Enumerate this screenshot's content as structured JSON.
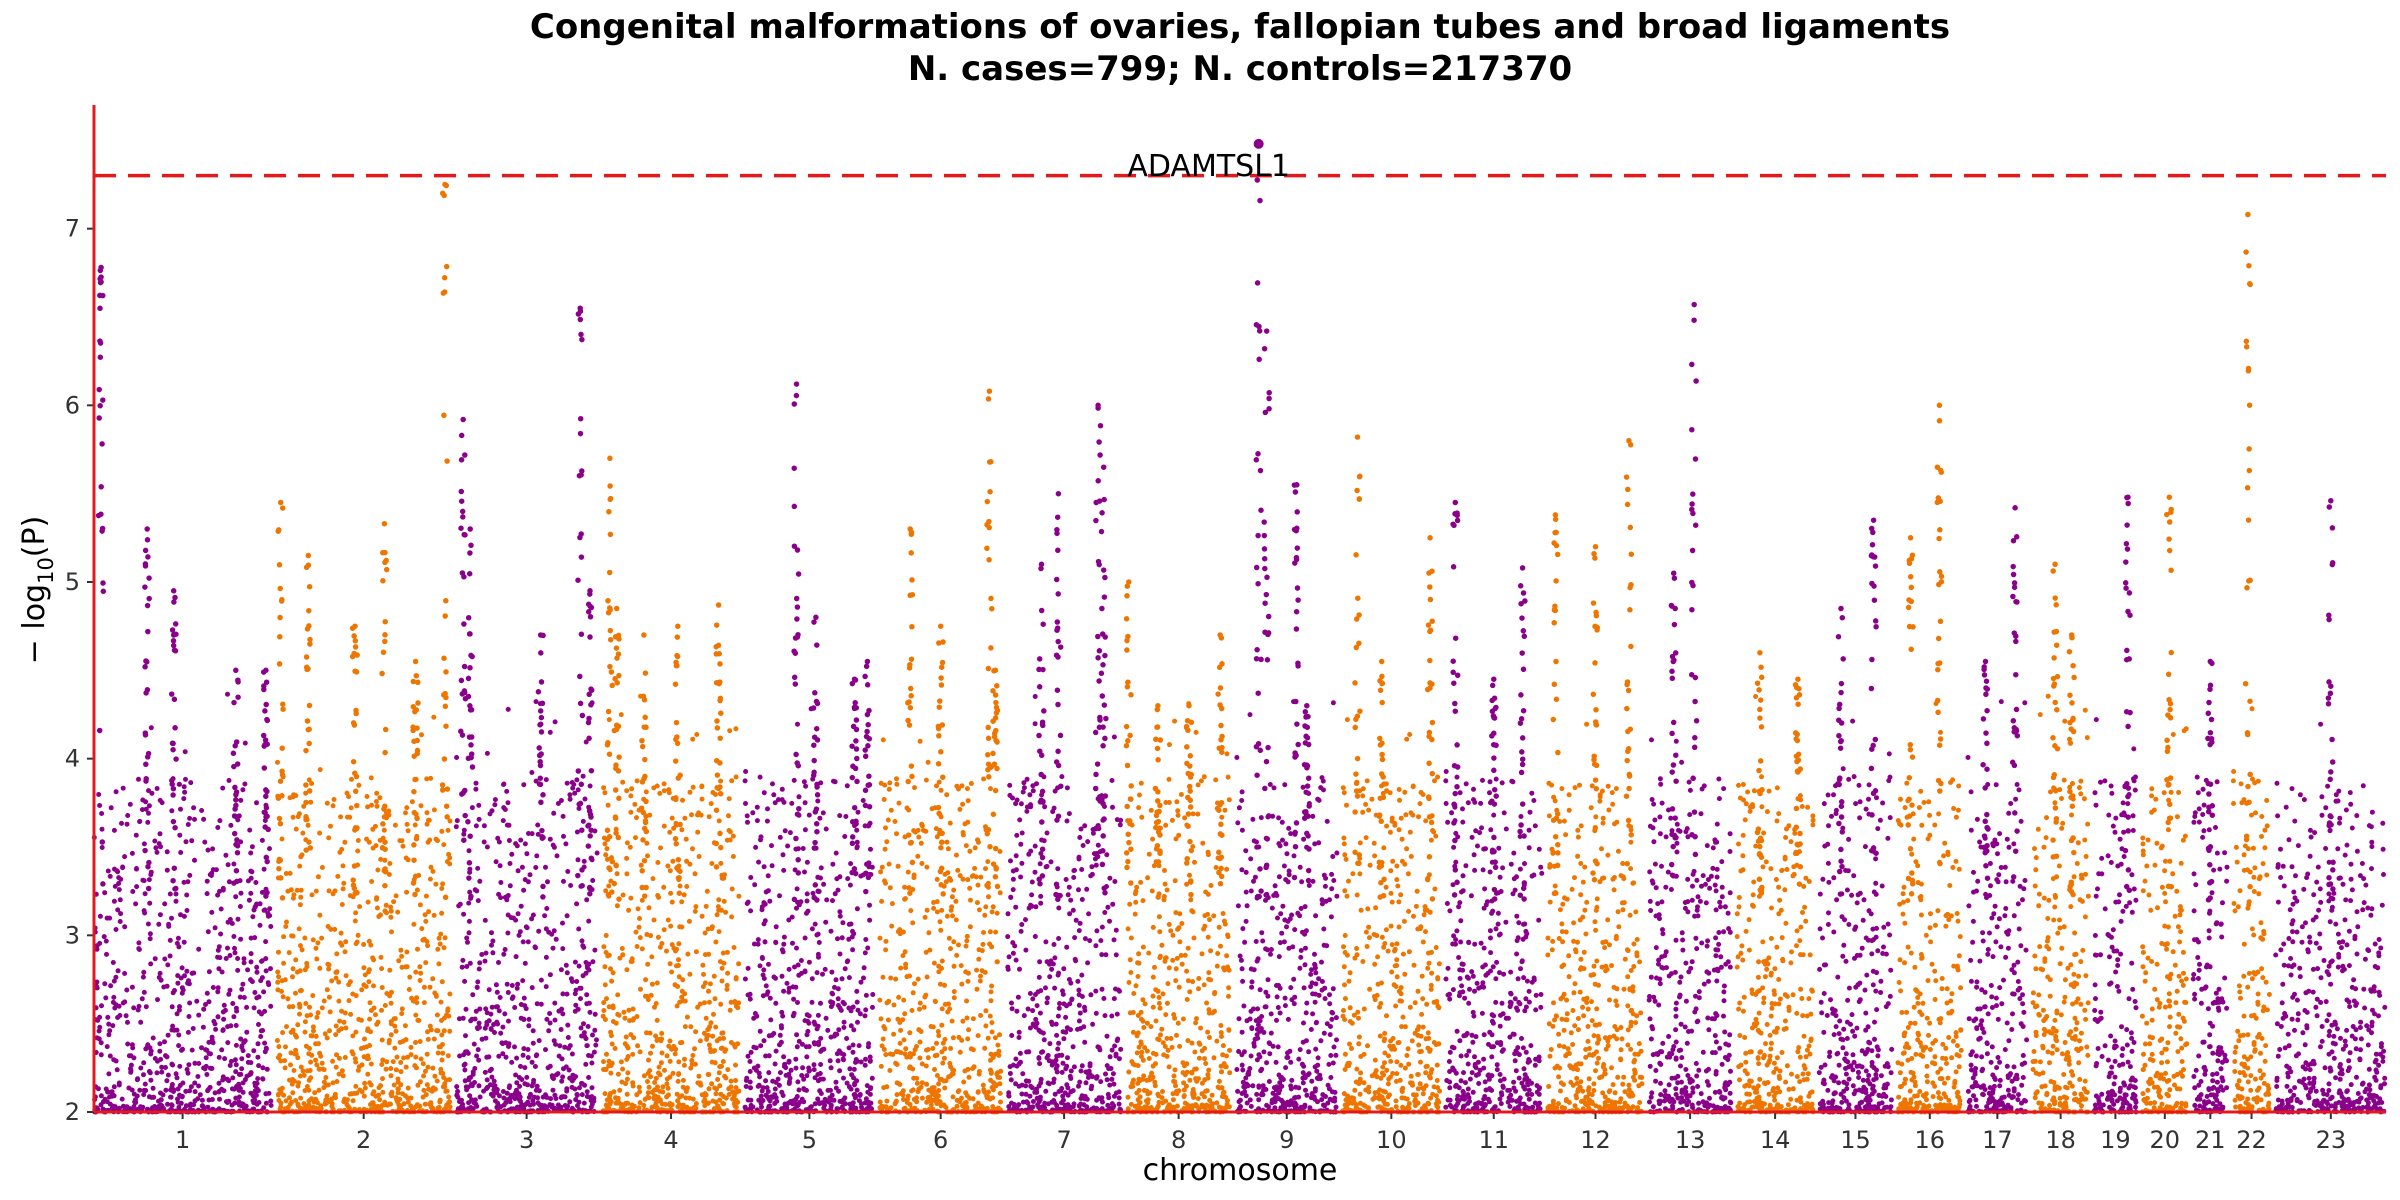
{
  "chart_data": {
    "type": "scatter",
    "title": "Congenital malformations of ovaries, fallopian tubes and broad ligaments",
    "subtitle": "N. cases=799; N. controls=217370",
    "xlabel": "chromosome",
    "ylabel_main": "− log",
    "ylabel_sub": "10",
    "ylabel_tail": "(P)",
    "ylim": [
      2,
      7.7
    ],
    "yticks": [
      "2",
      "3",
      "4",
      "5",
      "6",
      "7"
    ],
    "threshold": 7.3,
    "grid": false,
    "colors": {
      "odd": "#8b008b",
      "even": "#ee7600",
      "threshold": "#e31a1c",
      "axis": "#e31a1c"
    },
    "chromosomes": [
      {
        "label": "1",
        "length": 249,
        "peaks": [
          [
            0.04,
            6.78
          ],
          [
            0.3,
            5.3
          ],
          [
            0.45,
            4.95
          ],
          [
            0.8,
            4.5
          ],
          [
            0.97,
            4.5
          ]
        ]
      },
      {
        "label": "2",
        "length": 243,
        "peaks": [
          [
            0.02,
            5.45
          ],
          [
            0.18,
            5.15
          ],
          [
            0.45,
            4.75
          ],
          [
            0.62,
            5.33
          ],
          [
            0.8,
            4.55
          ],
          [
            0.97,
            7.25
          ]
        ]
      },
      {
        "label": "3",
        "length": 198,
        "peaks": [
          [
            0.05,
            5.92
          ],
          [
            0.1,
            5.3
          ],
          [
            0.6,
            4.7
          ],
          [
            0.88,
            6.55
          ],
          [
            0.95,
            4.95
          ]
        ]
      },
      {
        "label": "4",
        "length": 191,
        "peaks": [
          [
            0.05,
            5.7
          ],
          [
            0.1,
            4.85
          ],
          [
            0.3,
            4.7
          ],
          [
            0.55,
            4.75
          ],
          [
            0.85,
            4.87
          ]
        ]
      },
      {
        "label": "5",
        "length": 181,
        "peaks": [
          [
            0.4,
            6.12
          ],
          [
            0.55,
            4.8
          ],
          [
            0.85,
            4.45
          ],
          [
            0.95,
            4.55
          ]
        ]
      },
      {
        "label": "6",
        "length": 171,
        "peaks": [
          [
            0.25,
            5.3
          ],
          [
            0.5,
            4.75
          ],
          [
            0.9,
            6.08
          ],
          [
            0.95,
            4.5
          ]
        ]
      },
      {
        "label": "7",
        "length": 159,
        "peaks": [
          [
            0.3,
            5.1
          ],
          [
            0.45,
            5.5
          ],
          [
            0.8,
            6.0
          ],
          [
            0.85,
            5.65
          ]
        ]
      },
      {
        "label": "8",
        "length": 146,
        "peaks": [
          [
            0.02,
            5.0
          ],
          [
            0.3,
            4.3
          ],
          [
            0.6,
            4.3
          ],
          [
            0.9,
            4.7
          ]
        ]
      },
      {
        "label": "9",
        "length": 141,
        "peaks": [
          [
            0.22,
            7.48
          ],
          [
            0.3,
            6.42
          ],
          [
            0.6,
            5.55
          ],
          [
            0.7,
            4.3
          ]
        ]
      },
      {
        "label": "10",
        "length": 136,
        "peaks": [
          [
            0.15,
            5.82
          ],
          [
            0.4,
            4.55
          ],
          [
            0.9,
            5.25
          ]
        ]
      },
      {
        "label": "11",
        "length": 135,
        "peaks": [
          [
            0.1,
            5.45
          ],
          [
            0.5,
            4.45
          ],
          [
            0.8,
            5.08
          ]
        ]
      },
      {
        "label": "12",
        "length": 134,
        "peaks": [
          [
            0.08,
            5.38
          ],
          [
            0.5,
            5.2
          ],
          [
            0.85,
            5.8
          ]
        ]
      },
      {
        "label": "13",
        "length": 115,
        "peaks": [
          [
            0.3,
            5.05
          ],
          [
            0.55,
            6.57
          ]
        ]
      },
      {
        "label": "14",
        "length": 107,
        "peaks": [
          [
            0.3,
            4.6
          ],
          [
            0.8,
            4.45
          ]
        ]
      },
      {
        "label": "15",
        "length": 102,
        "peaks": [
          [
            0.3,
            4.85
          ],
          [
            0.75,
            5.35
          ]
        ]
      },
      {
        "label": "16",
        "length": 90,
        "peaks": [
          [
            0.2,
            5.25
          ],
          [
            0.65,
            6.0
          ]
        ]
      },
      {
        "label": "17",
        "length": 83,
        "peaks": [
          [
            0.3,
            4.55
          ],
          [
            0.8,
            5.42
          ]
        ]
      },
      {
        "label": "18",
        "length": 78,
        "peaks": [
          [
            0.4,
            5.1
          ],
          [
            0.7,
            4.7
          ]
        ]
      },
      {
        "label": "19",
        "length": 59,
        "peaks": [
          [
            0.8,
            5.48
          ]
        ]
      },
      {
        "label": "20",
        "length": 63,
        "peaks": [
          [
            0.6,
            5.48
          ]
        ]
      },
      {
        "label": "21",
        "length": 48,
        "peaks": [
          [
            0.5,
            4.55
          ]
        ]
      },
      {
        "label": "22",
        "length": 51,
        "peaks": [
          [
            0.4,
            7.08
          ]
        ]
      },
      {
        "label": "23",
        "length": 155,
        "peaks": [
          [
            0.5,
            5.46
          ]
        ]
      }
    ],
    "annotations": [
      {
        "text": "ADAMTSL1",
        "chromosome": "9",
        "position": 0.22,
        "y": 7.48
      }
    ]
  }
}
